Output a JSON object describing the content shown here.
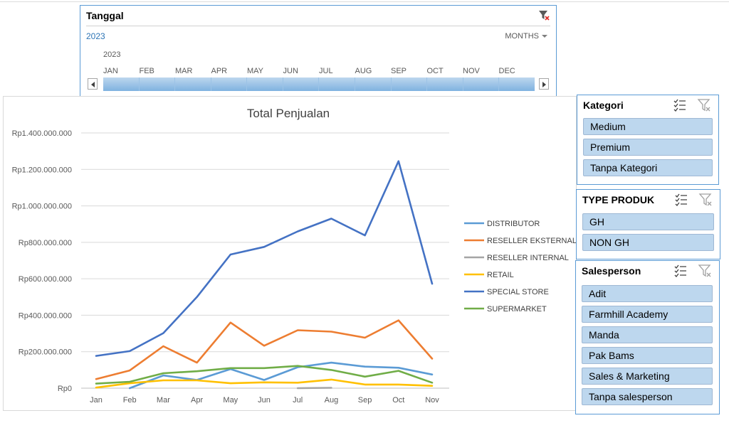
{
  "timeline": {
    "header": "Tanggal",
    "year": "2023",
    "level": "MONTHS",
    "subyear": "2023",
    "months": [
      "JAN",
      "FEB",
      "MAR",
      "APR",
      "MAY",
      "JUN",
      "JUL",
      "AUG",
      "SEP",
      "OCT",
      "NOV",
      "DEC"
    ],
    "clear_icon": "clear-filter-icon"
  },
  "slicers": {
    "kategori": {
      "title": "Kategori",
      "items": [
        "Medium",
        "Premium",
        "Tanpa Kategori"
      ]
    },
    "type_produk": {
      "title": "TYPE PRODUK",
      "items": [
        "GH",
        "NON GH"
      ]
    },
    "salesperson": {
      "title": "Salesperson",
      "items": [
        "Adit",
        "Farmhill Academy",
        "Manda",
        "Pak Bams",
        "Sales & Marketing",
        "Tanpa salesperson"
      ]
    },
    "icons": [
      "multi-select-icon",
      "clear-filter-icon"
    ]
  },
  "chart_data": {
    "type": "line",
    "title": "Total Penjualan",
    "xlabel": "",
    "ylabel": "",
    "categories": [
      "Jan",
      "Feb",
      "Mar",
      "Apr",
      "May",
      "Jun",
      "Jul",
      "Aug",
      "Sep",
      "Oct",
      "Nov"
    ],
    "ylim": [
      0,
      1400000000
    ],
    "yticks": [
      0,
      200000000,
      400000000,
      600000000,
      800000000,
      1000000000,
      1200000000,
      1400000000
    ],
    "ytick_labels": [
      "Rp0",
      "Rp200.000.000",
      "Rp400.000.000",
      "Rp600.000.000",
      "Rp800.000.000",
      "Rp1.000.000.000",
      "Rp1.200.000.000",
      "Rp1.400.000.000"
    ],
    "grid": true,
    "legend": "right",
    "series": [
      {
        "name": "DISTRIBUTOR",
        "color": "#5b9bd5",
        "values": [
          null,
          0,
          70000000,
          45000000,
          105000000,
          45000000,
          115000000,
          140000000,
          118000000,
          112000000,
          75000000
        ]
      },
      {
        "name": "RESELLER EKSTERNAL",
        "color": "#ed7d31",
        "values": [
          50000000,
          97000000,
          230000000,
          140000000,
          360000000,
          233000000,
          318000000,
          310000000,
          277000000,
          372000000,
          162000000
        ]
      },
      {
        "name": "RESELLER INTERNAL",
        "color": "#a5a5a5",
        "values": [
          null,
          null,
          null,
          null,
          null,
          null,
          0,
          2000000,
          null,
          null,
          null
        ]
      },
      {
        "name": "RETAIL",
        "color": "#ffc000",
        "values": [
          3000000,
          27000000,
          43000000,
          43000000,
          27000000,
          32000000,
          30000000,
          47000000,
          20000000,
          20000000,
          13000000
        ]
      },
      {
        "name": "SPECIAL STORE",
        "color": "#4472c4",
        "values": [
          177000000,
          203000000,
          302000000,
          500000000,
          733000000,
          775000000,
          860000000,
          930000000,
          838000000,
          1245000000,
          573000000
        ]
      },
      {
        "name": "SUPERMARKET",
        "color": "#70ad47",
        "values": [
          25000000,
          35000000,
          82000000,
          93000000,
          110000000,
          110000000,
          122000000,
          100000000,
          63000000,
          95000000,
          30000000
        ]
      }
    ]
  }
}
